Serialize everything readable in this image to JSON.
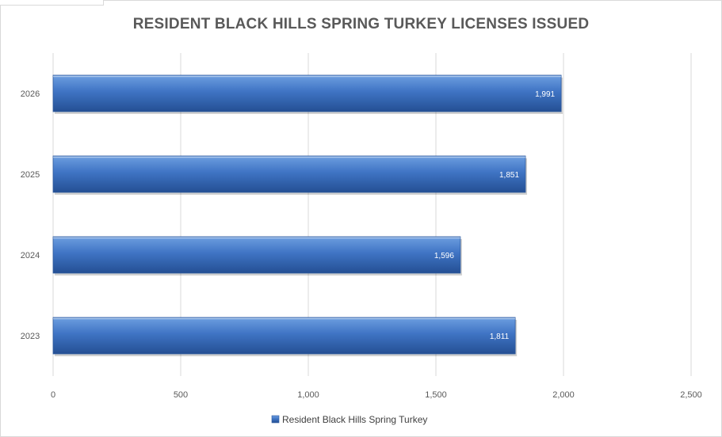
{
  "chart_data": {
    "type": "bar",
    "orientation": "horizontal",
    "title": "RESIDENT BLACK HILLS SPRING TURKEY LICENSES ISSUED",
    "categories": [
      "2023",
      "2024",
      "2025",
      "2026"
    ],
    "series": [
      {
        "name": "Resident Black Hills Spring Turkey",
        "values": [
          1811,
          1596,
          1851,
          1991
        ],
        "data_labels": [
          "1,811",
          "1,596",
          "1,851",
          "1,991"
        ],
        "color": "#3f74c4"
      }
    ],
    "xlim": [
      0,
      2500
    ],
    "x_ticks": [
      0,
      500,
      1000,
      1500,
      2000,
      2500
    ],
    "x_tick_labels": [
      "0",
      "500",
      "1,000",
      "1,500",
      "2,000",
      "2,500"
    ],
    "grid": true,
    "legend_position": "bottom"
  },
  "colors": {
    "bar_top": "#6d9ee0",
    "bar_mid": "#3f74c4",
    "bar_bottom": "#244f93",
    "grid": "#d9d9d9",
    "title": "#595959"
  }
}
